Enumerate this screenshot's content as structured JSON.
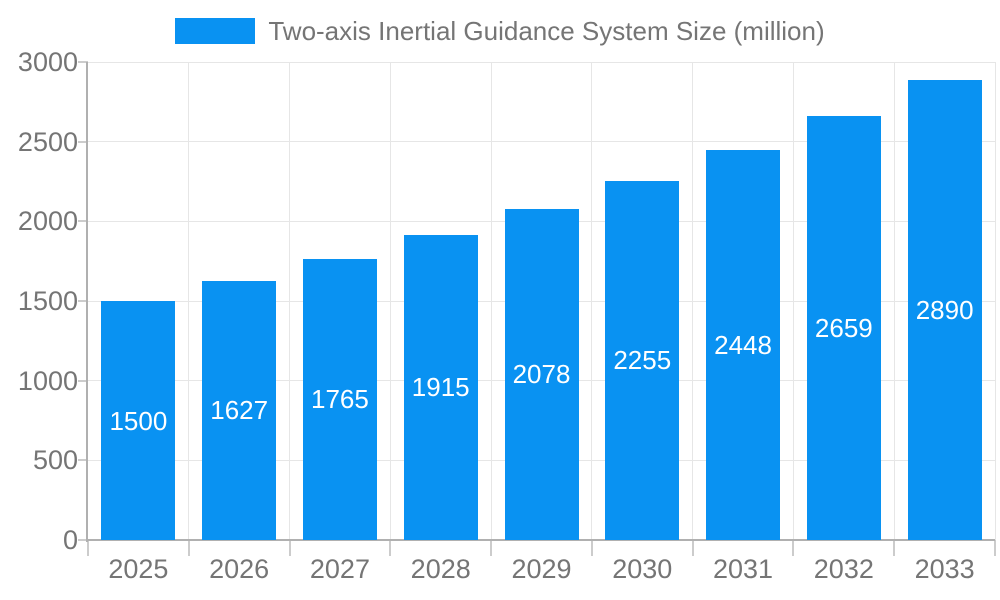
{
  "legend": {
    "label": "Two-axis Inertial Guidance System Size (million)"
  },
  "chart_data": {
    "type": "bar",
    "title": "Two-axis Inertial Guidance System Size (million)",
    "categories": [
      "2025",
      "2026",
      "2027",
      "2028",
      "2029",
      "2030",
      "2031",
      "2032",
      "2033"
    ],
    "series": [
      {
        "name": "Two-axis Inertial Guidance System Size (million)",
        "values": [
          1500,
          1627,
          1765,
          1915,
          2078,
          2255,
          2448,
          2659,
          2890
        ]
      }
    ],
    "value_labels": [
      1500,
      1627,
      1765,
      1915,
      2078,
      2255,
      2448,
      2659,
      2890
    ],
    "xlabel": "",
    "ylabel": "",
    "ylim": [
      0,
      3000
    ],
    "y_ticks": [
      0,
      500,
      1000,
      1500,
      2000,
      2500,
      3000
    ],
    "grid": true,
    "legend_position": "top-center",
    "value_label_position": "inside-center",
    "colors": {
      "bar": "#0992f2",
      "axis_text": "#757575",
      "value_text": "#ffffff",
      "grid_line": "#e6e6e6",
      "axis_line": "#b0b0b0",
      "tick_line": "#cccccc",
      "background": "#ffffff"
    }
  }
}
